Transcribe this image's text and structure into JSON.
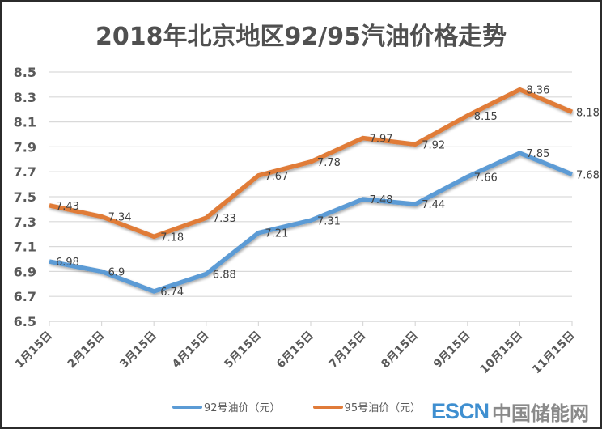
{
  "chart_data": {
    "type": "line",
    "title": "2018年北京地区92/95汽油价格走势",
    "xlabel": "",
    "ylabel": "",
    "categories": [
      "1月15日",
      "2月15日",
      "3月15日",
      "4月15日",
      "5月15日",
      "6月15日",
      "7月15日",
      "8月15日",
      "9月15日",
      "10月15日",
      "11月15日"
    ],
    "ylim": [
      6.5,
      8.5
    ],
    "yticks": [
      "6.5",
      "6.7",
      "6.9",
      "7.1",
      "7.3",
      "7.5",
      "7.7",
      "7.9",
      "8.1",
      "8.3",
      "8.5"
    ],
    "grid": true,
    "legend_position": "bottom",
    "series": [
      {
        "name": "92号油价（元）",
        "color": "#5b9bd5",
        "values": [
          6.98,
          6.9,
          6.74,
          6.88,
          7.21,
          7.31,
          7.48,
          7.44,
          7.66,
          7.85,
          7.68
        ],
        "labels": [
          "6.98",
          "6.9",
          "6.74",
          "6.88",
          "7.21",
          "7.31",
          "7.48",
          "7.44",
          "7.66",
          "7.85",
          "7.68"
        ]
      },
      {
        "name": "95号油价（元）",
        "color": "#e07b39",
        "values": [
          7.43,
          7.34,
          7.18,
          7.33,
          7.67,
          7.78,
          7.97,
          7.92,
          8.15,
          8.36,
          8.18
        ],
        "labels": [
          "7.43",
          "7.34",
          "7.18",
          "7.33",
          "7.67",
          "7.78",
          "7.97",
          "7.92",
          "8.15",
          "8.36",
          "8.18"
        ]
      }
    ]
  },
  "watermark": {
    "brand": "ESCN",
    "name": "中国储能网"
  }
}
